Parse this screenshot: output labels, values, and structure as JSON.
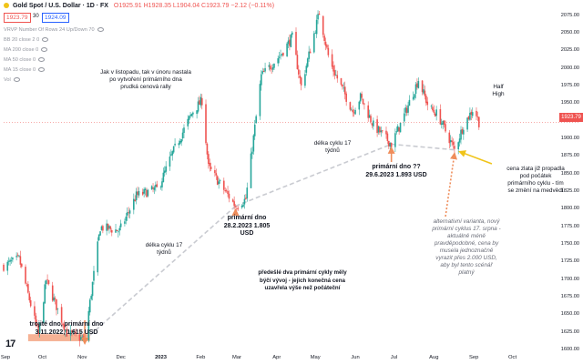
{
  "header": {
    "symbol": "Gold Spot / U.S. Dollar · 1D · FX",
    "ohlc": "O1925.91  H1928.35  L1904.04  C1923.79  −2.12 (−0.11%)",
    "bid": "1923.79",
    "spread": "30",
    "ask": "1924.09"
  },
  "indicators": [
    "VRVP Number Of Rows 24 Up/Down 70",
    "BB 20 close 2 0",
    "MA 200 close 0",
    "MA 50 close 0",
    "MA 15 close 0",
    "Vol"
  ],
  "y_axis_ticks": [
    "2075.00",
    "2050.00",
    "2025.00",
    "2000.00",
    "1975.00",
    "1950.00",
    "1925.00",
    "1900.00",
    "1875.00",
    "1850.00",
    "1825.00",
    "1800.00",
    "1775.00",
    "1750.00",
    "1725.00",
    "1700.00",
    "1675.00",
    "1650.00",
    "1625.00",
    "1600.00"
  ],
  "x_axis_ticks": [
    "Sep",
    "Oct",
    "Nov",
    "Dec",
    "2023",
    "Feb",
    "Mar",
    "Apr",
    "May",
    "Jun",
    "Jul",
    "Aug",
    "Sep",
    "Oct"
  ],
  "last_price": "1923.79",
  "annotations": {
    "intro": "Jak v listopadu, tak v únoru nastala po vytvoření primárního dna prudká cenová rally",
    "triple_bottom": "trojité dno, primární dno 3.11.2022, 1.615 USD",
    "bottom_feb": "primární dno 28.2.2023 1.805 USD",
    "bottom_jun": "primární dno ?? 29.6.2023 1.893 USD",
    "cycle1": "délka cyklu 17 týdnů",
    "cycle2": "délka cyklu 17 týdnů",
    "half_high": "Half High",
    "gold_fall": "cena zlata již propadla pod počátek primárního cyklu - tím se změní na medvědí",
    "prev_cycles": "předešlé dva primární cykly měly býčí vývoj - jejich konečná cena uzavřela výše než počáteční",
    "alternative": "alternativní varianta, nový primární cyklus 17. srpna - aktuálně méně pravděpodobné, cena by musela jednoznačně vyrazit přes 2.000 USD, aby byl tento scénář platný"
  },
  "colors": {
    "up": "#26a69a",
    "down": "#ef5350",
    "support": "#f4a582",
    "arrow": "#ef8d5b",
    "yellow": "#f0c419",
    "dashed": "#c9cbd1"
  },
  "chart_data": {
    "type": "candlestick",
    "title": "Gold Spot / U.S. Dollar · 1D · FX",
    "ylim": [
      1600,
      2085
    ],
    "y_scale": "linear",
    "grid": false,
    "x_range": [
      "2022-09-01",
      "2023-10-31"
    ],
    "keypoints": [
      {
        "date": "2022-09-01",
        "price": 1720
      },
      {
        "date": "2022-09-13",
        "price": 1730
      },
      {
        "date": "2022-09-28",
        "price": 1622
      },
      {
        "date": "2022-10-04",
        "price": 1700
      },
      {
        "date": "2022-10-20",
        "price": 1625
      },
      {
        "date": "2022-11-03",
        "price": 1615
      },
      {
        "date": "2022-11-15",
        "price": 1775
      },
      {
        "date": "2022-11-30",
        "price": 1770
      },
      {
        "date": "2022-12-13",
        "price": 1820
      },
      {
        "date": "2022-12-30",
        "price": 1830
      },
      {
        "date": "2023-01-10",
        "price": 1880
      },
      {
        "date": "2023-01-26",
        "price": 1940
      },
      {
        "date": "2023-02-02",
        "price": 1955
      },
      {
        "date": "2023-02-07",
        "price": 1860
      },
      {
        "date": "2023-02-28",
        "price": 1805
      },
      {
        "date": "2023-03-08",
        "price": 1815
      },
      {
        "date": "2023-03-20",
        "price": 1990
      },
      {
        "date": "2023-04-04",
        "price": 2020
      },
      {
        "date": "2023-04-13",
        "price": 2045
      },
      {
        "date": "2023-04-20",
        "price": 1975
      },
      {
        "date": "2023-05-04",
        "price": 2080
      },
      {
        "date": "2023-05-12",
        "price": 2010
      },
      {
        "date": "2023-05-30",
        "price": 1940
      },
      {
        "date": "2023-06-05",
        "price": 1960
      },
      {
        "date": "2023-06-15",
        "price": 1920
      },
      {
        "date": "2023-06-29",
        "price": 1893
      },
      {
        "date": "2023-07-07",
        "price": 1925
      },
      {
        "date": "2023-07-20",
        "price": 1985
      },
      {
        "date": "2023-07-28",
        "price": 1945
      },
      {
        "date": "2023-08-04",
        "price": 1935
      },
      {
        "date": "2023-08-17",
        "price": 1885
      },
      {
        "date": "2023-08-24",
        "price": 1920
      },
      {
        "date": "2023-09-01",
        "price": 1945
      },
      {
        "date": "2023-09-05",
        "price": 1924
      }
    ],
    "support_zone": {
      "from": "2022-09-20",
      "to": "2022-11-07",
      "low": 1613,
      "high": 1623
    },
    "cycle_lines": [
      {
        "from": {
          "date": "2022-11-03",
          "price": 1615
        },
        "to": {
          "date": "2023-02-28",
          "price": 1805
        }
      },
      {
        "from": {
          "date": "2023-02-28",
          "price": 1805
        },
        "to": {
          "date": "2023-06-29",
          "price": 1893
        }
      },
      {
        "from": {
          "date": "2023-06-29",
          "price": 1893
        },
        "to": {
          "date": "2023-08-17",
          "price": 1885
        }
      }
    ]
  }
}
